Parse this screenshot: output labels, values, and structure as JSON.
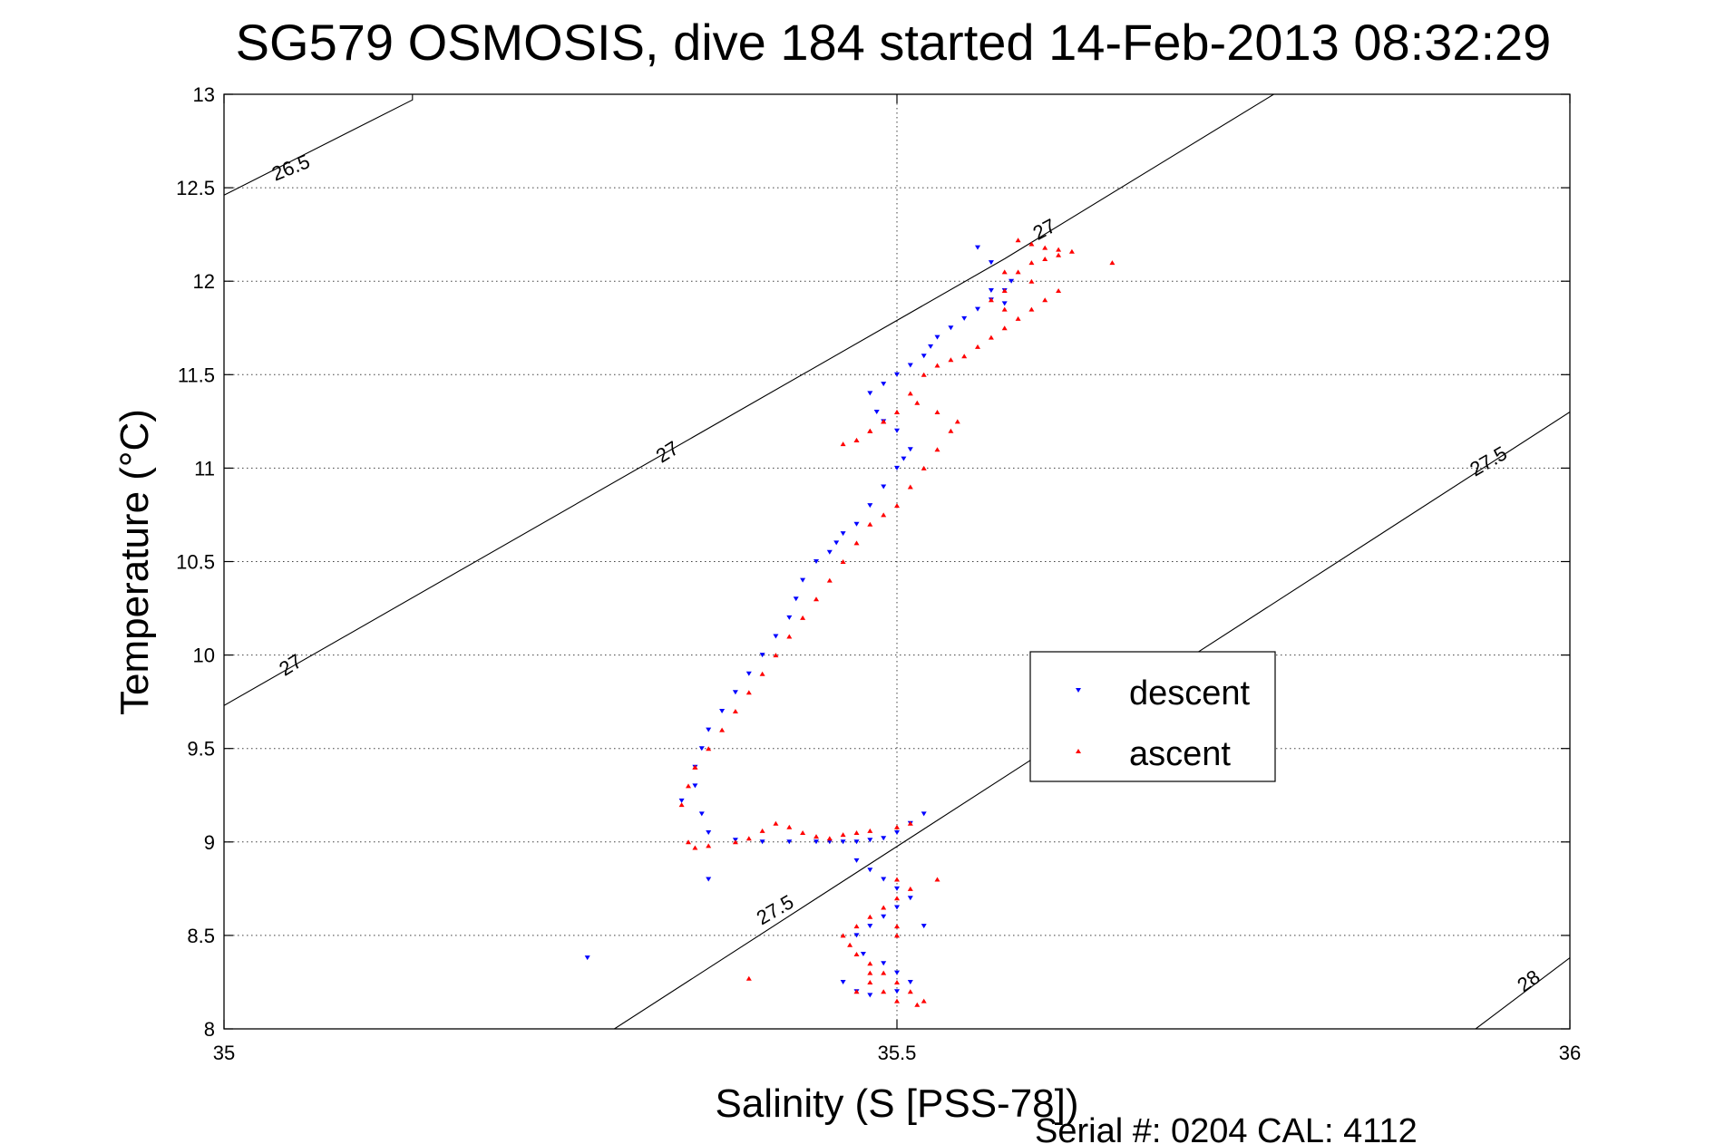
{
  "chart_data": {
    "type": "scatter",
    "title": "SG579 OSMOSIS, dive 184 started 14-Feb-2013 08:32:29",
    "xlabel": "Salinity (S [PSS-78])",
    "ylabel": "Temperature (°C)",
    "xlim": [
      35,
      36
    ],
    "ylim": [
      8,
      13
    ],
    "xticks": [
      35,
      35.5,
      36
    ],
    "xtick_labels": [
      "35",
      "35.5",
      "36"
    ],
    "yticks": [
      8,
      8.5,
      9,
      9.5,
      10,
      10.5,
      11,
      11.5,
      12,
      12.5,
      13
    ],
    "ytick_labels": [
      "8",
      "8.5",
      "9",
      "9.5",
      "10",
      "10.5",
      "11",
      "11.5",
      "12",
      "12.5",
      "13"
    ],
    "grid": true,
    "legend_position": "right",
    "footer": "Serial #: 0204  CAL: 4112",
    "series": [
      {
        "name": "descent",
        "color": "#0000ff",
        "marker": "triangle-down",
        "x": [
          35.52,
          35.51,
          35.5,
          35.49,
          35.48,
          35.47,
          35.46,
          35.47,
          35.48,
          35.49,
          35.5,
          35.51,
          35.5,
          35.49,
          35.48,
          35.47,
          35.475,
          35.49,
          35.5,
          35.51,
          35.5,
          35.48,
          35.47,
          35.46,
          35.45,
          35.44,
          35.42,
          35.4,
          35.38,
          35.36,
          35.355,
          35.35,
          35.35,
          35.355,
          35.36,
          35.37,
          35.38,
          35.39,
          35.4,
          35.41,
          35.42,
          35.425,
          35.43,
          35.44,
          35.45,
          35.455,
          35.46,
          35.47,
          35.48,
          35.49,
          35.5,
          35.505,
          35.51,
          35.5,
          35.49,
          35.485,
          35.48,
          35.49,
          35.5,
          35.51,
          35.52,
          35.525,
          35.53,
          35.54,
          35.55,
          35.56,
          35.57,
          35.58,
          35.585,
          35.57,
          35.56,
          35.57,
          35.58,
          35.52,
          35.27,
          35.34,
          35.36
        ],
        "y": [
          9.15,
          9.1,
          9.05,
          9.02,
          9.01,
          9.0,
          9.0,
          8.9,
          8.85,
          8.8,
          8.75,
          8.7,
          8.65,
          8.6,
          8.55,
          8.5,
          8.4,
          8.35,
          8.3,
          8.25,
          8.2,
          8.18,
          8.2,
          8.25,
          9.0,
          9.0,
          9.0,
          9.0,
          9.01,
          9.05,
          9.15,
          9.3,
          9.4,
          9.5,
          9.6,
          9.7,
          9.8,
          9.9,
          10.0,
          10.1,
          10.2,
          10.3,
          10.4,
          10.5,
          10.55,
          10.6,
          10.65,
          10.7,
          10.8,
          10.9,
          11.0,
          11.05,
          11.1,
          11.2,
          11.25,
          11.3,
          11.4,
          11.45,
          11.5,
          11.55,
          11.6,
          11.65,
          11.7,
          11.75,
          11.8,
          11.85,
          11.9,
          11.95,
          12.0,
          12.1,
          12.18,
          11.95,
          11.88,
          8.55,
          8.38,
          9.22,
          8.8
        ]
      },
      {
        "name": "ascent",
        "color": "#ff0000",
        "marker": "triangle-up",
        "x": [
          35.51,
          35.5,
          35.48,
          35.47,
          35.46,
          35.45,
          35.44,
          35.43,
          35.42,
          35.41,
          35.4,
          35.39,
          35.38,
          35.36,
          35.35,
          35.345,
          35.34,
          35.345,
          35.35,
          35.36,
          35.37,
          35.38,
          35.39,
          35.4,
          35.41,
          35.42,
          35.43,
          35.44,
          35.45,
          35.46,
          35.47,
          35.48,
          35.49,
          35.5,
          35.51,
          35.52,
          35.53,
          35.54,
          35.545,
          35.53,
          35.515,
          35.5,
          35.49,
          35.48,
          35.47,
          35.46,
          35.47,
          35.48,
          35.49,
          35.5,
          35.51,
          35.52,
          35.53,
          35.54,
          35.55,
          35.56,
          35.57,
          35.58,
          35.59,
          35.6,
          35.61,
          35.62,
          35.6,
          35.58,
          35.57,
          35.58,
          35.59,
          35.6,
          35.61,
          35.62,
          35.63,
          35.62,
          35.61,
          35.6,
          35.59,
          35.58,
          35.5,
          35.51,
          35.5,
          35.49,
          35.48,
          35.47,
          35.46,
          35.465,
          35.47,
          35.48,
          35.49,
          35.5,
          35.51,
          35.52,
          35.515,
          35.5,
          35.49,
          35.48,
          35.47,
          35.48,
          35.5,
          35.5,
          35.53,
          35.66,
          35.39,
          35.35
        ],
        "y": [
          9.1,
          9.08,
          9.06,
          9.05,
          9.04,
          9.02,
          9.03,
          9.05,
          9.08,
          9.1,
          9.06,
          9.02,
          9.0,
          8.98,
          8.97,
          9.0,
          9.2,
          9.3,
          9.4,
          9.5,
          9.6,
          9.7,
          9.8,
          9.9,
          10.0,
          10.1,
          10.2,
          10.3,
          10.4,
          10.5,
          10.6,
          10.7,
          10.75,
          10.8,
          10.9,
          11.0,
          11.1,
          11.2,
          11.25,
          11.3,
          11.35,
          11.3,
          11.25,
          11.2,
          11.15,
          11.13,
          11.15,
          11.2,
          11.25,
          11.3,
          11.4,
          11.5,
          11.55,
          11.58,
          11.6,
          11.65,
          11.7,
          11.75,
          11.8,
          11.85,
          11.9,
          11.95,
          12.0,
          11.95,
          11.9,
          11.85,
          12.05,
          12.1,
          12.12,
          12.14,
          12.16,
          12.17,
          12.18,
          12.2,
          12.22,
          12.05,
          8.8,
          8.75,
          8.7,
          8.65,
          8.6,
          8.55,
          8.5,
          8.45,
          8.4,
          8.35,
          8.3,
          8.25,
          8.2,
          8.15,
          8.13,
          8.15,
          8.2,
          8.25,
          8.2,
          8.3,
          8.5,
          8.55,
          8.8,
          12.1,
          8.27,
          9.4
        ]
      }
    ],
    "contours": [
      {
        "label": "26.5",
        "points": [
          [
            35.0,
            12.46
          ],
          [
            35.14,
            12.97
          ],
          [
            35.14,
            13.0
          ]
        ]
      },
      {
        "label": "27",
        "points": [
          [
            35.0,
            9.73
          ],
          [
            35.58,
            12.12
          ],
          [
            35.78,
            13.0
          ]
        ]
      },
      {
        "label": "27.5",
        "points": [
          [
            35.29,
            8.0
          ],
          [
            36.0,
            11.3
          ]
        ]
      },
      {
        "label": "28",
        "points": [
          [
            35.93,
            8.0
          ],
          [
            36.0,
            8.38
          ]
        ]
      }
    ],
    "contour_labels": [
      {
        "text": "26.5",
        "x": 35.05,
        "y": 12.6,
        "angle": -22
      },
      {
        "text": "27",
        "x": 35.61,
        "y": 12.27,
        "angle": -28
      },
      {
        "text": "27",
        "x": 35.33,
        "y": 11.08,
        "angle": -32
      },
      {
        "text": "27",
        "x": 35.05,
        "y": 9.94,
        "angle": -32
      },
      {
        "text": "27.5",
        "x": 35.41,
        "y": 8.63,
        "angle": -30
      },
      {
        "text": "27.5",
        "x": 35.94,
        "y": 11.03,
        "angle": -30
      },
      {
        "text": "28",
        "x": 35.97,
        "y": 8.25,
        "angle": -35
      }
    ]
  }
}
